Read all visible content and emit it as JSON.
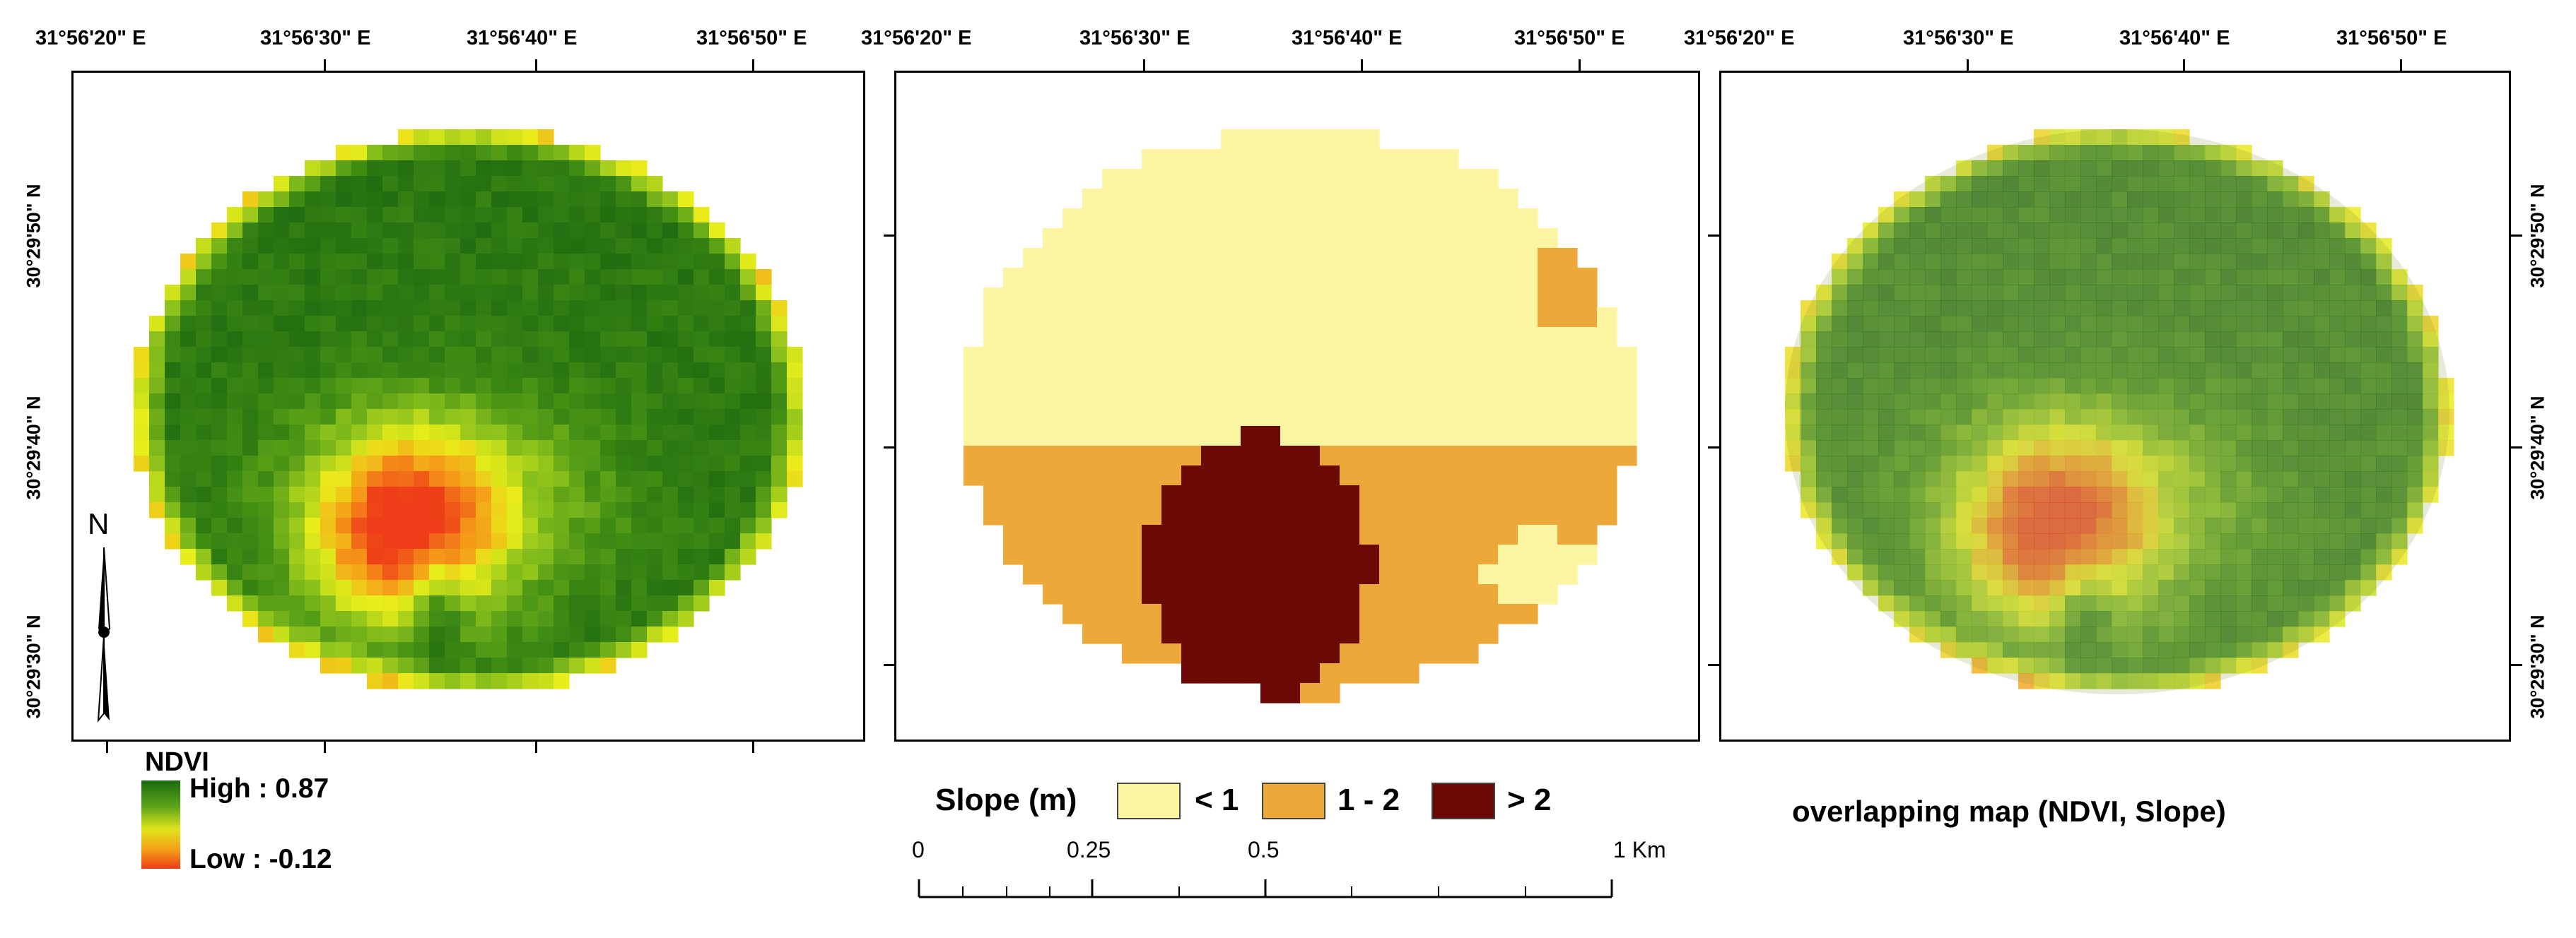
{
  "top_labels": [
    "31°56'20\" E",
    "31°56'30\" E",
    "31°56'40\" E",
    "31°56'50\" E"
  ],
  "lat_labels": [
    "30°29'50\" N",
    "30°29'40\" N",
    "30°29'30\" N"
  ],
  "north_letter": "N",
  "ndvi_legend": {
    "title": "NDVI",
    "high": "High : 0.87",
    "low": "Low : -0.12"
  },
  "slope_legend": {
    "title": "Slope (m)",
    "classes": [
      {
        "label": "< 1",
        "color": "#fbf4a0"
      },
      {
        "label": "1 - 2",
        "color": "#eda83a"
      },
      {
        "label": "> 2",
        "color": "#6b0a05"
      }
    ]
  },
  "overlap_title": "overlapping map (NDVI, Slope)",
  "scale_bar": {
    "labels": [
      "0",
      "0.25",
      "0.5",
      "1 Km"
    ]
  },
  "colors": {
    "ndvi_high": "#1f6b10",
    "ndvi_mid": "#e6ee1a",
    "ndvi_low": "#ee4a18"
  }
}
